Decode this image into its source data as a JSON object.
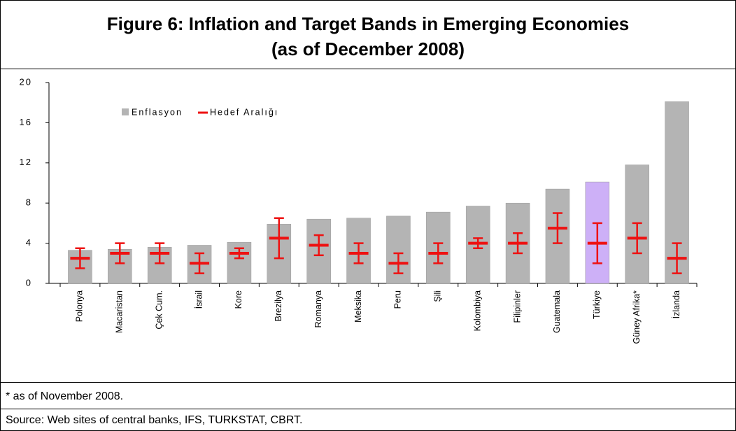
{
  "chart_data": {
    "type": "bar",
    "title": "Figure 6: Inflation and Target Bands in Emerging Economies",
    "subtitle": "(as of December 2008)",
    "categories": [
      "Polonya",
      "Macaristan",
      "Çek Cum.",
      "İsrail",
      "Kore",
      "Brezilya",
      "Romanya",
      "Meksika",
      "Peru",
      "Şili",
      "Kolombiya",
      "Filipinler",
      "Guatemala",
      "Türkiye",
      "Güney Afrika*",
      "İzlanda"
    ],
    "series": [
      {
        "name": "Enflasyon",
        "color": "#b4b4b4",
        "colors": [
          "#b4b4b4",
          "#b4b4b4",
          "#b4b4b4",
          "#b4b4b4",
          "#b4b4b4",
          "#b4b4b4",
          "#b4b4b4",
          "#b4b4b4",
          "#b4b4b4",
          "#b4b4b4",
          "#b4b4b4",
          "#b4b4b4",
          "#b4b4b4",
          "#cdb0f7",
          "#b4b4b4",
          "#b4b4b4"
        ],
        "values": [
          3.3,
          3.4,
          3.6,
          3.8,
          4.1,
          5.9,
          6.4,
          6.5,
          6.7,
          7.1,
          7.7,
          8.0,
          9.4,
          10.1,
          11.8,
          18.1
        ]
      },
      {
        "name": "Hedef Aralığı",
        "color": "#ee1111",
        "values": [
          2.5,
          3,
          3,
          2,
          3,
          4.5,
          3.8,
          3,
          2,
          3,
          4,
          4,
          5.5,
          4,
          4.5,
          2.5
        ],
        "errors": [
          1,
          1,
          1,
          1,
          0.5,
          2,
          1,
          1,
          1,
          1,
          0.5,
          1,
          1.5,
          2,
          1.5,
          1.5
        ]
      }
    ],
    "ylim": [
      0,
      20
    ],
    "yticks": [
      0,
      4,
      8,
      12,
      16,
      20
    ],
    "footnote": "* as of November 2008.",
    "source": "Source: Web sites of central banks, IFS, TURKSTAT, CBRT."
  }
}
